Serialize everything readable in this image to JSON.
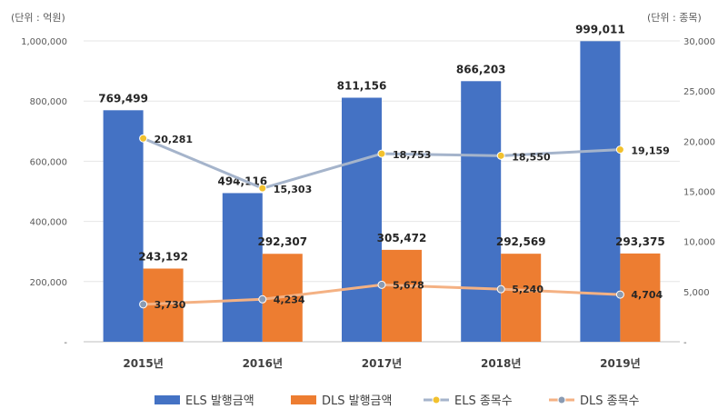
{
  "chart_data": {
    "type": "bar",
    "title": "",
    "left_unit": "(단위 : 억원)",
    "right_unit": "(단위 : 종목)",
    "categories": [
      "2015년",
      "2016년",
      "2017년",
      "2018년",
      "2019년"
    ],
    "series": [
      {
        "name": "ELS 발행금액",
        "type": "bar",
        "axis": "left",
        "color": "#4472C4",
        "values": [
          769499,
          494116,
          811156,
          866203,
          999011
        ],
        "labels": [
          "769,499",
          "494,116",
          "811,156",
          "866,203",
          "999,011"
        ]
      },
      {
        "name": "DLS 발행금액",
        "type": "bar",
        "axis": "left",
        "color": "#ED7D31",
        "values": [
          243192,
          292307,
          305472,
          292569,
          293375
        ],
        "labels": [
          "243,192",
          "292,307",
          "305,472",
          "292,569",
          "293,375"
        ]
      },
      {
        "name": "ELS 종목수",
        "type": "line",
        "axis": "right",
        "color": "#A5B4CB",
        "marker_color": "#F2C12E",
        "values": [
          20281,
          15303,
          18753,
          18550,
          19159
        ],
        "labels": [
          "20,281",
          "15,303",
          "18,753",
          "18,550",
          "19,159"
        ]
      },
      {
        "name": "DLS 종목수",
        "type": "line",
        "axis": "right",
        "color": "#F4B183",
        "marker_color": "#8A9BB3",
        "values": [
          3730,
          4234,
          5678,
          5240,
          4704
        ],
        "labels": [
          "3,730",
          "4,234",
          "5,678",
          "5,240",
          "4,704"
        ]
      }
    ],
    "ylim_left": [
      0,
      1000000
    ],
    "ylim_right": [
      0,
      30000
    ],
    "left_ticks": [
      0,
      200000,
      400000,
      600000,
      800000,
      1000000
    ],
    "left_tick_labels": [
      "-",
      "200,000",
      "400,000",
      "600,000",
      "800,000",
      "1,000,000"
    ],
    "right_ticks": [
      0,
      5000,
      10000,
      15000,
      20000,
      25000,
      30000
    ],
    "right_tick_labels": [
      "-",
      "5,000",
      "10,000",
      "15,000",
      "20,000",
      "25,000",
      "30,000"
    ],
    "grid": true,
    "legend_position": "bottom"
  }
}
